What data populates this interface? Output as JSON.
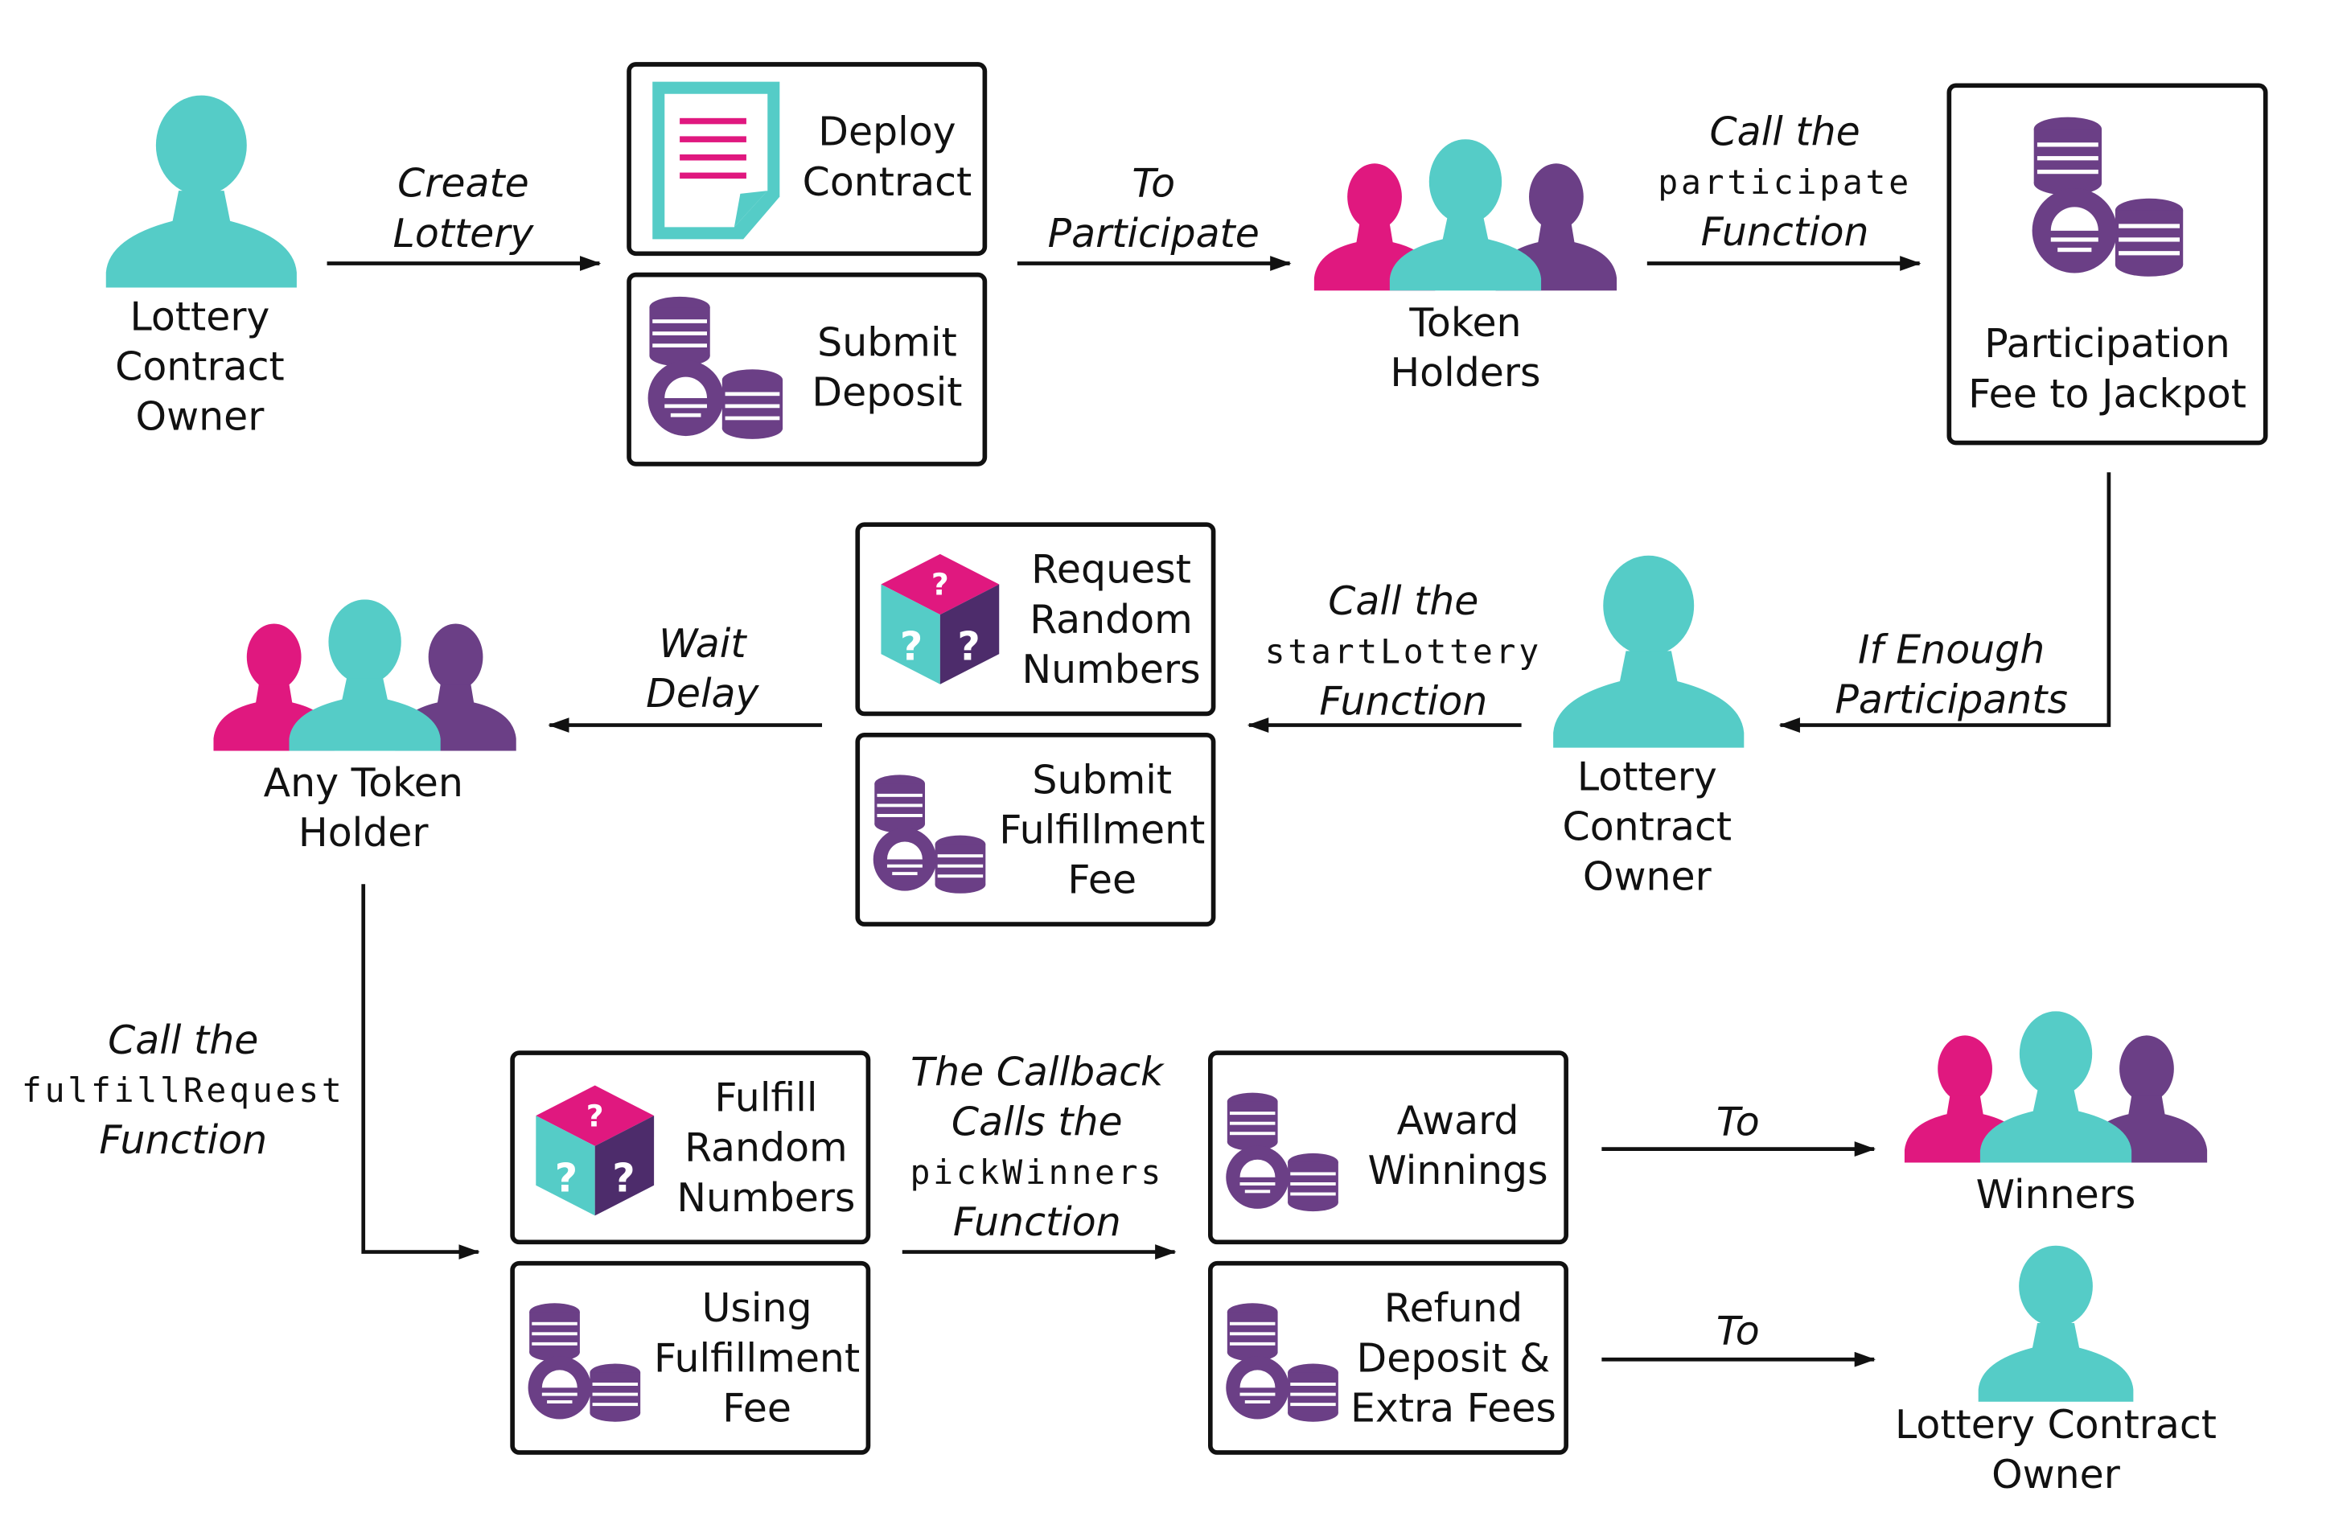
{
  "colors": {
    "teal": "#55ccc7",
    "pink": "#e0187f",
    "purple": "#6b3f86",
    "ink": "#111111"
  },
  "row1": {
    "owner_label": [
      "Lottery",
      "Contract",
      "Owner"
    ],
    "arrow_create": [
      "Create",
      "Lottery"
    ],
    "deploy_box": {
      "icon": "contract-document-icon",
      "text": [
        "Deploy",
        "Contract"
      ]
    },
    "deposit_box": {
      "icon": "coins-icon",
      "text": [
        "Submit",
        "Deposit"
      ]
    },
    "arrow_participate": [
      "To",
      "Participate"
    ],
    "holders_label": [
      "Token",
      "Holders"
    ],
    "arrow_call_pre": "Call the",
    "arrow_call_code": "participate",
    "arrow_call_post": "Function",
    "jackpot_box": {
      "icon": "coins-icon",
      "text": [
        "Participation",
        "Fee to Jackpot"
      ]
    }
  },
  "row2": {
    "arrow_enough": [
      "If Enough",
      "Participants"
    ],
    "owner_label": [
      "Lottery",
      "Contract",
      "Owner"
    ],
    "arrow_start_pre": "Call the",
    "arrow_start_code": "startLottery",
    "arrow_start_post": "Function",
    "request_box": {
      "icon": "random-dice-icon",
      "text": [
        "Request",
        "Random",
        "Numbers"
      ]
    },
    "fee_box": {
      "icon": "coins-icon",
      "text": [
        "Submit",
        "Fulfillment",
        "Fee"
      ]
    },
    "arrow_wait": [
      "Wait",
      "Delay"
    ],
    "any_holder_label": [
      "Any Token",
      "Holder"
    ]
  },
  "row3": {
    "arrow_fulfill_pre": "Call the",
    "arrow_fulfill_code": "fulfillRequest",
    "arrow_fulfill_post": "Function",
    "fulfill_box": {
      "icon": "random-dice-icon",
      "text": [
        "Fulfill",
        "Random",
        "Numbers"
      ]
    },
    "using_box": {
      "icon": "coins-icon",
      "text": [
        "Using",
        "Fulfillment",
        "Fee"
      ]
    },
    "arrow_callback_l1": "The Callback",
    "arrow_callback_l2": "Calls the",
    "arrow_callback_code": "pickWinners",
    "arrow_callback_post": "Function",
    "award_box": {
      "icon": "coins-icon",
      "text": [
        "Award",
        "Winnings"
      ]
    },
    "refund_box": {
      "icon": "coins-icon",
      "text": [
        "Refund",
        "Deposit &",
        "Extra Fees"
      ]
    },
    "arrow_to_winners": "To",
    "winners_label": "Winners",
    "arrow_to_owner": "To",
    "owner_label": [
      "Lottery Contract",
      "Owner"
    ]
  }
}
